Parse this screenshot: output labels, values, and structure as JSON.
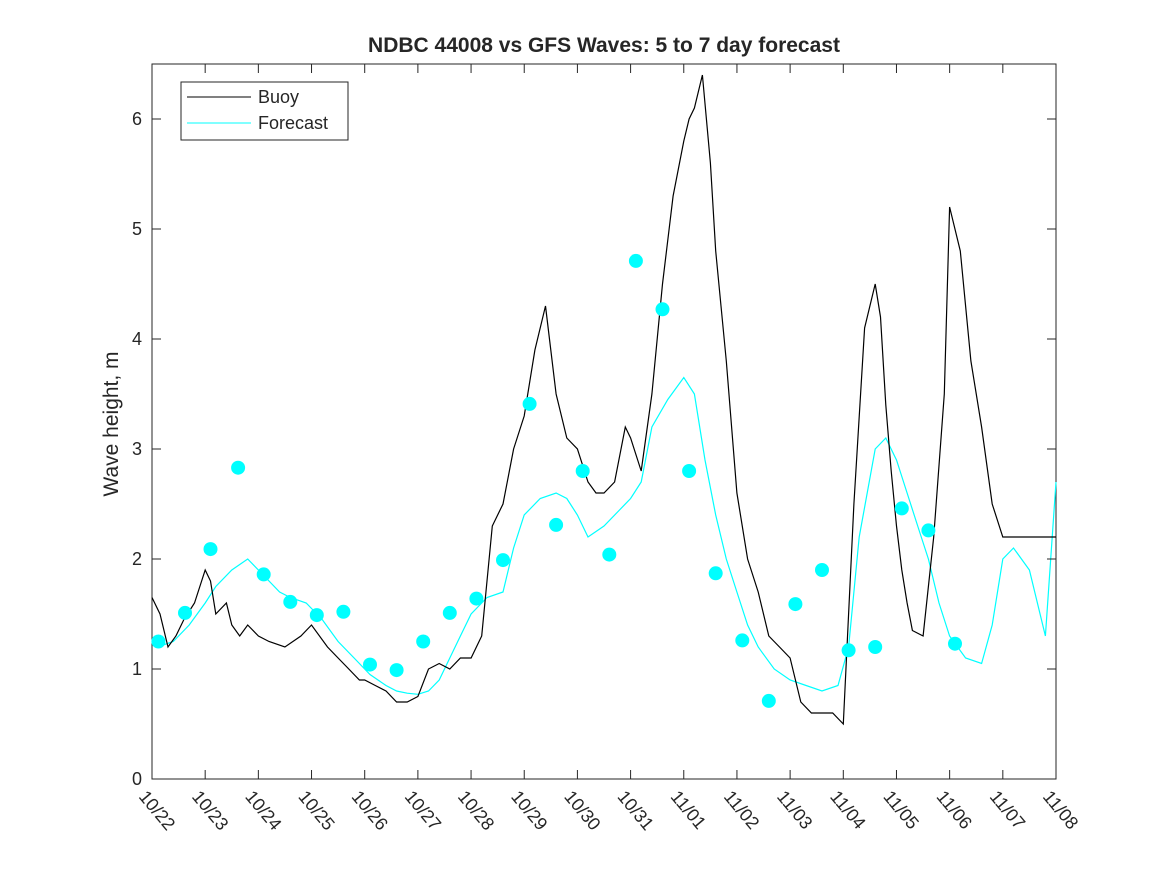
{
  "chart_data": {
    "type": "line",
    "title": "NDBC 44008 vs GFS Waves: 5 to 7 day forecast",
    "xlabel": "",
    "ylabel": "Wave height, m",
    "xlim": [
      0,
      17
    ],
    "ylim": [
      0,
      6.5
    ],
    "grid": false,
    "legend_position": "top-left",
    "x_tick_labels": [
      "10/22",
      "10/23",
      "10/24",
      "10/25",
      "10/26",
      "10/27",
      "10/28",
      "10/29",
      "10/30",
      "10/31",
      "11/01",
      "11/02",
      "11/03",
      "11/04",
      "11/05",
      "11/06",
      "11/07",
      "11/08"
    ],
    "y_ticks": [
      0,
      1,
      2,
      3,
      4,
      5,
      6
    ],
    "x_units": "days since 10/22",
    "colors": {
      "buoy": "#000000",
      "forecast": "#00ffff",
      "axes": "#262626"
    },
    "series": [
      {
        "name": "Buoy",
        "x": [
          0.0,
          0.15,
          0.3,
          0.45,
          0.6,
          0.8,
          1.0,
          1.1,
          1.2,
          1.4,
          1.5,
          1.65,
          1.8,
          2.0,
          2.2,
          2.5,
          2.8,
          3.0,
          3.3,
          3.5,
          3.7,
          3.9,
          4.0,
          4.2,
          4.4,
          4.6,
          4.8,
          5.0,
          5.2,
          5.4,
          5.6,
          5.8,
          6.0,
          6.2,
          6.4,
          6.6,
          6.8,
          7.0,
          7.2,
          7.4,
          7.6,
          7.8,
          8.0,
          8.2,
          8.35,
          8.5,
          8.7,
          8.9,
          9.0,
          9.2,
          9.4,
          9.6,
          9.8,
          10.0,
          10.1,
          10.2,
          10.35,
          10.5,
          10.6,
          10.7,
          10.8,
          10.9,
          11.0,
          11.2,
          11.4,
          11.6,
          11.8,
          12.0,
          12.2,
          12.4,
          12.6,
          12.8,
          13.0,
          13.2,
          13.4,
          13.6,
          13.7,
          13.8,
          13.9,
          14.0,
          14.1,
          14.2,
          14.3,
          14.5,
          14.7,
          14.9,
          15.0,
          15.2,
          15.4,
          15.6,
          15.8,
          16.0,
          16.2,
          16.4,
          16.6,
          16.8,
          17.0
        ],
        "y": [
          1.65,
          1.5,
          1.2,
          1.3,
          1.45,
          1.6,
          1.9,
          1.8,
          1.5,
          1.6,
          1.4,
          1.3,
          1.4,
          1.3,
          1.25,
          1.2,
          1.3,
          1.4,
          1.2,
          1.1,
          1.0,
          0.9,
          0.9,
          0.85,
          0.8,
          0.7,
          0.7,
          0.75,
          1.0,
          1.05,
          1.0,
          1.1,
          1.1,
          1.3,
          2.3,
          2.5,
          3.0,
          3.3,
          3.9,
          4.3,
          3.5,
          3.1,
          3.0,
          2.7,
          2.6,
          2.6,
          2.7,
          3.2,
          3.1,
          2.8,
          3.5,
          4.5,
          5.3,
          5.8,
          6.0,
          6.1,
          6.4,
          5.6,
          4.8,
          4.3,
          3.8,
          3.2,
          2.6,
          2.0,
          1.7,
          1.3,
          1.2,
          1.1,
          0.7,
          0.6,
          0.6,
          0.6,
          0.5,
          2.5,
          4.1,
          4.5,
          4.2,
          3.4,
          2.8,
          2.3,
          1.9,
          1.6,
          1.35,
          1.3,
          2.2,
          3.5,
          5.2,
          4.8,
          3.8,
          3.2,
          2.5,
          2.2,
          2.2,
          2.2,
          2.2,
          2.2,
          2.2
        ]
      },
      {
        "name": "Forecast",
        "x": [
          0.1,
          0.4,
          0.7,
          1.0,
          1.2,
          1.5,
          1.8,
          2.1,
          2.4,
          2.6,
          2.9,
          3.2,
          3.5,
          3.8,
          4.1,
          4.4,
          4.6,
          4.8,
          5.0,
          5.2,
          5.4,
          5.6,
          5.8,
          6.0,
          6.3,
          6.6,
          6.8,
          7.0,
          7.3,
          7.6,
          7.8,
          8.0,
          8.2,
          8.5,
          8.8,
          9.0,
          9.2,
          9.4,
          9.7,
          10.0,
          10.2,
          10.4,
          10.6,
          10.8,
          11.0,
          11.2,
          11.4,
          11.7,
          12.0,
          12.3,
          12.6,
          12.9,
          13.1,
          13.3,
          13.6,
          13.8,
          14.0,
          14.2,
          14.4,
          14.6,
          14.8,
          15.0,
          15.3,
          15.6,
          15.8,
          16.0,
          16.2,
          16.5,
          16.8,
          17.0
        ],
        "y": [
          1.2,
          1.25,
          1.4,
          1.6,
          1.75,
          1.9,
          2.0,
          1.85,
          1.7,
          1.65,
          1.6,
          1.45,
          1.25,
          1.1,
          0.95,
          0.85,
          0.8,
          0.78,
          0.77,
          0.8,
          0.9,
          1.1,
          1.3,
          1.5,
          1.65,
          1.7,
          2.1,
          2.4,
          2.55,
          2.6,
          2.55,
          2.4,
          2.2,
          2.3,
          2.45,
          2.55,
          2.7,
          3.2,
          3.45,
          3.65,
          3.5,
          2.9,
          2.4,
          2.0,
          1.7,
          1.4,
          1.2,
          1.0,
          0.9,
          0.85,
          0.8,
          0.85,
          1.2,
          2.2,
          3.0,
          3.1,
          2.9,
          2.6,
          2.3,
          2.0,
          1.6,
          1.3,
          1.1,
          1.05,
          1.4,
          2.0,
          2.1,
          1.9,
          1.3,
          2.7
        ]
      },
      {
        "name": "Forecast markers",
        "x": [
          0.12,
          0.62,
          1.1,
          1.62,
          2.1,
          2.6,
          3.1,
          3.6,
          4.1,
          4.6,
          5.1,
          5.6,
          6.1,
          6.6,
          7.1,
          7.6,
          8.1,
          8.6,
          9.1,
          9.6,
          10.1,
          10.6,
          11.1,
          11.6,
          12.1,
          12.6,
          13.1,
          13.6,
          14.1,
          14.6,
          15.1,
          15.6,
          16.1,
          16.6
        ],
        "y": [
          1.25,
          1.51,
          2.09,
          2.83,
          1.86,
          1.61,
          1.49,
          1.52,
          1.04,
          0.99,
          1.25,
          1.51,
          1.64,
          1.99,
          3.41,
          2.31,
          2.8,
          2.04,
          4.71,
          4.27,
          2.8,
          1.87,
          1.26,
          0.71,
          1.59,
          1.9,
          1.17,
          1.2,
          2.46,
          2.26,
          1.23,
          null,
          null,
          null
        ]
      }
    ],
    "legend": {
      "entries": [
        {
          "label": "Buoy",
          "color": "#000000"
        },
        {
          "label": "Forecast",
          "color": "#00ffff"
        }
      ]
    }
  }
}
